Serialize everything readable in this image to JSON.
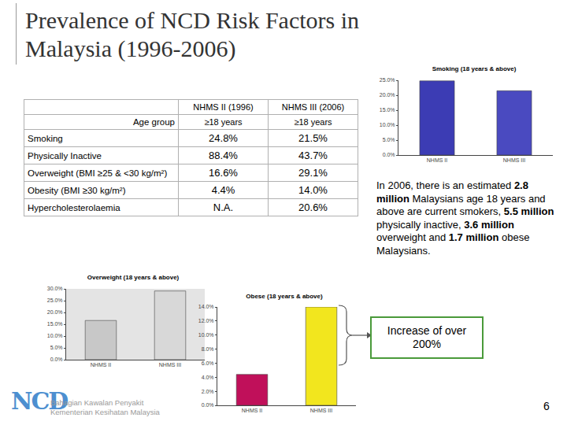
{
  "title": "Prevalence of NCD Risk Factors in Malaysia (1996-2006)",
  "table": {
    "header": [
      "",
      "NHMS II (1996)",
      "NHMS III (2006)"
    ],
    "subheader": [
      "Age group",
      "≥18 years",
      "≥18 years"
    ],
    "rows": [
      [
        "Smoking",
        "24.8%",
        "21.5%"
      ],
      [
        "Physically Inactive",
        "88.4%",
        "43.7%"
      ],
      [
        "Overweight (BMI ≥25 & <30 kg/m²)",
        "16.6%",
        "29.1%"
      ],
      [
        "Obesity (BMI ≥30 kg/m²)",
        "4.4%",
        "14.0%"
      ],
      [
        "Hypercholesterolaemia",
        "N.A.",
        "20.6%"
      ]
    ]
  },
  "note": [
    {
      "text": "In 2006, there is an estimated ",
      "bold": false
    },
    {
      "text": "2.8 million",
      "bold": true
    },
    {
      "text": " Malaysians age 18 years and above are current smokers, ",
      "bold": false
    },
    {
      "text": "5.5 million",
      "bold": true
    },
    {
      "text": " physically inactive, ",
      "bold": false
    },
    {
      "text": "3.6 million",
      "bold": true
    },
    {
      "text": " overweight and ",
      "bold": false
    },
    {
      "text": "1.7 million",
      "bold": true
    },
    {
      "text": " obese Malaysians.",
      "bold": false
    }
  ],
  "callout": "Increase of over 200%",
  "footer": {
    "logo": "NCD",
    "lines": [
      "Bahagian Kawalan Penyakit",
      "Kementerian Kesihatan Malaysia"
    ]
  },
  "page_number": "6",
  "chart_data": [
    {
      "type": "bar",
      "title": "Smoking (18 years & above)",
      "categories": [
        "NHMS II",
        "NHMS III"
      ],
      "values": [
        24.8,
        21.5
      ],
      "colors": [
        "#3c3cb4",
        "#4a4ac0"
      ],
      "ylim": [
        0,
        25
      ],
      "yticks": [
        {
          "value": 0,
          "label": "0.0%"
        },
        {
          "value": 5,
          "label": "5.0%"
        },
        {
          "value": 10,
          "label": "10.0%"
        },
        {
          "value": 15,
          "label": "15.0%"
        },
        {
          "value": 20,
          "label": "20.0%"
        },
        {
          "value": 25,
          "label": "25.0%"
        }
      ],
      "grid": false
    },
    {
      "type": "bar",
      "title": "Overweight (18 years & above)",
      "categories": [
        "NHMS II",
        "NHMS III"
      ],
      "values": [
        16.6,
        29.1
      ],
      "colors": [
        "#c8c8c8",
        "#d8d8d8"
      ],
      "ylim": [
        0,
        30
      ],
      "yticks": [
        {
          "value": 0,
          "label": "0.0%"
        },
        {
          "value": 5,
          "label": "5.0%"
        },
        {
          "value": 10,
          "label": "10.0%"
        },
        {
          "value": 15,
          "label": "15.0%"
        },
        {
          "value": 20,
          "label": "20.0%"
        },
        {
          "value": 25,
          "label": "25.0%"
        },
        {
          "value": 30,
          "label": "30.0%"
        }
      ],
      "grid": false
    },
    {
      "type": "bar",
      "title": "Obese (18 years & above)",
      "categories": [
        "NHMS II",
        "NHMS III"
      ],
      "values": [
        4.4,
        14.0
      ],
      "colors": [
        "#c0105a",
        "#f2e61e"
      ],
      "ylim": [
        0,
        14
      ],
      "yticks": [
        {
          "value": 0,
          "label": "0.0%"
        },
        {
          "value": 2,
          "label": "2.0%"
        },
        {
          "value": 4,
          "label": "4.0%"
        },
        {
          "value": 6,
          "label": "6.0%"
        },
        {
          "value": 8,
          "label": "8.0%"
        },
        {
          "value": 10,
          "label": "10.0%"
        },
        {
          "value": 12,
          "label": "12.0%"
        },
        {
          "value": 14,
          "label": "14.0%"
        }
      ],
      "grid": false
    }
  ]
}
